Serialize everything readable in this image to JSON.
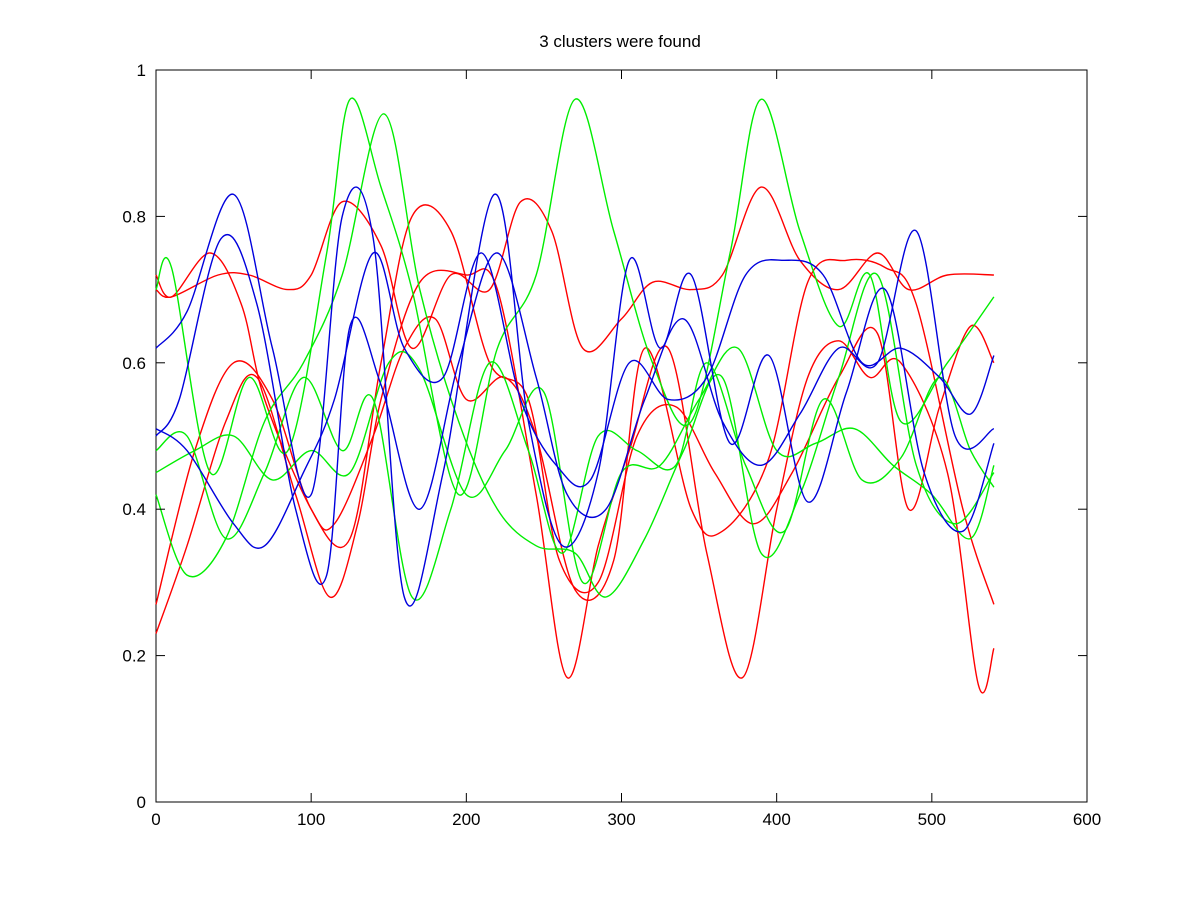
{
  "chart_data": {
    "type": "line",
    "title": "3 clusters were found",
    "xlabel": "",
    "ylabel": "",
    "xlim": [
      0,
      600
    ],
    "ylim": [
      0,
      1
    ],
    "xticks": [
      0,
      100,
      200,
      300,
      400,
      500,
      600
    ],
    "yticks": [
      0,
      0.2,
      0.4,
      0.6,
      0.8,
      1
    ],
    "grid": false,
    "legend": "none",
    "colors": {
      "cluster_1": "#ff0000",
      "cluster_2": "#00ee00",
      "cluster_3": "#0000dd"
    },
    "series": [
      {
        "cluster": "cluster_1",
        "x": [
          0,
          10,
          35,
          55,
          70,
          100,
          115,
          140,
          160,
          180,
          200,
          225,
          245,
          270,
          295,
          315,
          345,
          365,
          395,
          420,
          445,
          470,
          490,
          520,
          540
        ],
        "y": [
          0.72,
          0.69,
          0.75,
          0.68,
          0.55,
          0.4,
          0.38,
          0.5,
          0.62,
          0.66,
          0.55,
          0.58,
          0.5,
          0.29,
          0.33,
          0.62,
          0.4,
          0.37,
          0.47,
          0.71,
          0.74,
          0.73,
          0.68,
          0.4,
          0.27
        ]
      },
      {
        "cluster": "cluster_1",
        "x": [
          0,
          10,
          40,
          60,
          85,
          100,
          120,
          145,
          165,
          190,
          215,
          235,
          255,
          275,
          300,
          320,
          345,
          365,
          390,
          415,
          440,
          465,
          485,
          510,
          540
        ],
        "y": [
          0.7,
          0.69,
          0.72,
          0.72,
          0.7,
          0.72,
          0.82,
          0.76,
          0.62,
          0.72,
          0.7,
          0.82,
          0.78,
          0.62,
          0.66,
          0.71,
          0.7,
          0.72,
          0.84,
          0.74,
          0.7,
          0.75,
          0.7,
          0.72,
          0.72
        ]
      },
      {
        "cluster": "cluster_1",
        "x": [
          0,
          20,
          45,
          65,
          90,
          112,
          130,
          145,
          170,
          200,
          220,
          245,
          265,
          285,
          305,
          330,
          355,
          378,
          400,
          420,
          440,
          460,
          480,
          510,
          530,
          540
        ],
        "y": [
          0.23,
          0.35,
          0.52,
          0.58,
          0.42,
          0.28,
          0.38,
          0.55,
          0.71,
          0.72,
          0.7,
          0.42,
          0.17,
          0.35,
          0.48,
          0.62,
          0.34,
          0.17,
          0.4,
          0.58,
          0.63,
          0.58,
          0.6,
          0.45,
          0.16,
          0.21
        ]
      },
      {
        "cluster": "cluster_1",
        "x": [
          0,
          25,
          50,
          75,
          100,
          125,
          145,
          165,
          190,
          215,
          240,
          260,
          285,
          310,
          335,
          360,
          385,
          410,
          440,
          465,
          485,
          505,
          525,
          540
        ],
        "y": [
          0.27,
          0.48,
          0.6,
          0.55,
          0.4,
          0.36,
          0.6,
          0.8,
          0.78,
          0.6,
          0.55,
          0.33,
          0.3,
          0.5,
          0.54,
          0.45,
          0.38,
          0.45,
          0.58,
          0.64,
          0.4,
          0.54,
          0.65,
          0.6
        ]
      },
      {
        "cluster": "cluster_2",
        "x": [
          0,
          10,
          35,
          60,
          85,
          110,
          125,
          145,
          165,
          195,
          220,
          245,
          270,
          295,
          320,
          345,
          370,
          390,
          415,
          440,
          460,
          480,
          510,
          540
        ],
        "y": [
          0.7,
          0.73,
          0.45,
          0.58,
          0.48,
          0.75,
          0.96,
          0.84,
          0.7,
          0.42,
          0.62,
          0.72,
          0.96,
          0.78,
          0.6,
          0.52,
          0.75,
          0.96,
          0.78,
          0.65,
          0.72,
          0.52,
          0.6,
          0.69
        ]
      },
      {
        "cluster": "cluster_2",
        "x": [
          0,
          20,
          45,
          70,
          95,
          120,
          147,
          170,
          195,
          220,
          245,
          270,
          290,
          315,
          340,
          365,
          390,
          415,
          440,
          465,
          490,
          515,
          540
        ],
        "y": [
          0.42,
          0.31,
          0.36,
          0.52,
          0.6,
          0.72,
          0.94,
          0.7,
          0.52,
          0.4,
          0.35,
          0.34,
          0.28,
          0.36,
          0.48,
          0.58,
          0.34,
          0.42,
          0.58,
          0.72,
          0.46,
          0.38,
          0.45
        ]
      },
      {
        "cluster": "cluster_2",
        "x": [
          0,
          20,
          45,
          70,
          95,
          120,
          140,
          165,
          190,
          215,
          240,
          262,
          285,
          310,
          335,
          355,
          380,
          405,
          430,
          455,
          480,
          505,
          525,
          540
        ],
        "y": [
          0.48,
          0.5,
          0.36,
          0.45,
          0.58,
          0.48,
          0.55,
          0.28,
          0.4,
          0.6,
          0.48,
          0.34,
          0.5,
          0.48,
          0.46,
          0.6,
          0.46,
          0.37,
          0.55,
          0.44,
          0.47,
          0.58,
          0.48,
          0.43
        ]
      },
      {
        "cluster": "cluster_2",
        "x": [
          0,
          25,
          50,
          75,
          100,
          125,
          150,
          170,
          200,
          225,
          250,
          275,
          300,
          325,
          350,
          375,
          400,
          425,
          450,
          475,
          500,
          525,
          540
        ],
        "y": [
          0.45,
          0.48,
          0.5,
          0.44,
          0.48,
          0.45,
          0.6,
          0.59,
          0.42,
          0.48,
          0.56,
          0.3,
          0.45,
          0.46,
          0.55,
          0.62,
          0.48,
          0.49,
          0.51,
          0.46,
          0.42,
          0.36,
          0.46
        ]
      },
      {
        "cluster": "cluster_3",
        "x": [
          0,
          20,
          50,
          75,
          100,
          120,
          140,
          160,
          185,
          218,
          240,
          262,
          285,
          305,
          325,
          345,
          370,
          395,
          420,
          445,
          470,
          495,
          520,
          540
        ],
        "y": [
          0.62,
          0.67,
          0.83,
          0.62,
          0.42,
          0.8,
          0.77,
          0.28,
          0.45,
          0.83,
          0.52,
          0.35,
          0.45,
          0.74,
          0.62,
          0.72,
          0.49,
          0.61,
          0.41,
          0.56,
          0.7,
          0.45,
          0.37,
          0.49
        ]
      },
      {
        "cluster": "cluster_3",
        "x": [
          0,
          15,
          42,
          65,
          90,
          110,
          125,
          145,
          170,
          195,
          220,
          245,
          265,
          290,
          315,
          340,
          365,
          390,
          415,
          440,
          465,
          490,
          515,
          540
        ],
        "y": [
          0.5,
          0.55,
          0.77,
          0.68,
          0.4,
          0.31,
          0.65,
          0.57,
          0.4,
          0.6,
          0.75,
          0.58,
          0.42,
          0.4,
          0.55,
          0.66,
          0.52,
          0.46,
          0.53,
          0.62,
          0.6,
          0.78,
          0.5,
          0.51
        ]
      },
      {
        "cluster": "cluster_3",
        "x": [
          0,
          20,
          50,
          70,
          95,
          115,
          140,
          160,
          185,
          210,
          235,
          258,
          280,
          305,
          330,
          355,
          380,
          405,
          430,
          455,
          480,
          505,
          525,
          540
        ],
        "y": [
          0.51,
          0.48,
          0.38,
          0.35,
          0.45,
          0.55,
          0.75,
          0.62,
          0.58,
          0.75,
          0.55,
          0.46,
          0.44,
          0.6,
          0.55,
          0.58,
          0.72,
          0.74,
          0.72,
          0.6,
          0.62,
          0.58,
          0.53,
          0.61
        ]
      }
    ]
  }
}
